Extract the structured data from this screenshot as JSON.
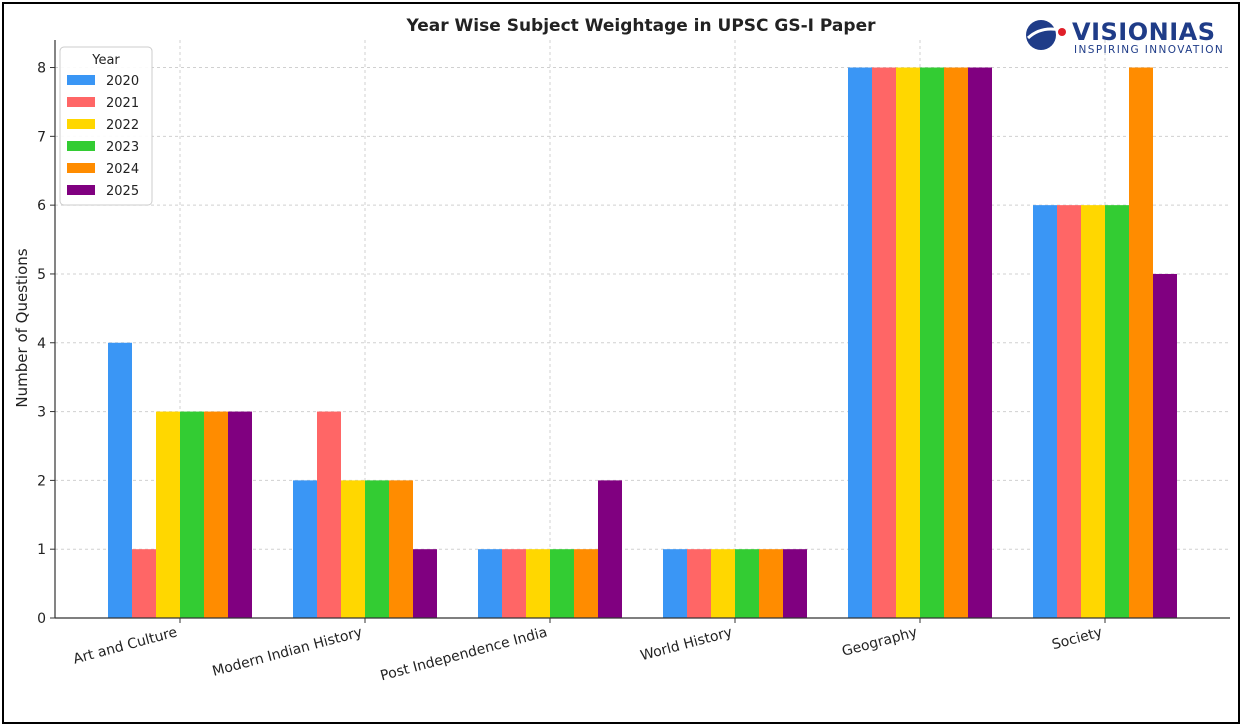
{
  "brand": {
    "name": "VISIONIAS",
    "tagline": "INSPIRING INNOVATION",
    "colors": {
      "primary": "#1f3c88",
      "accent": "#e0202a"
    }
  },
  "chart_data": {
    "type": "bar",
    "title": "Year Wise Subject Weightage in UPSC GS-I Paper",
    "xlabel": "",
    "ylabel": "Number of Questions",
    "ylim": [
      0,
      8.4
    ],
    "yticks": [
      0,
      1,
      2,
      3,
      4,
      5,
      6,
      7,
      8
    ],
    "grid": true,
    "legend": {
      "title": "Year",
      "placement": "top-left"
    },
    "categories": [
      "Art and Culture",
      "Modern Indian History",
      "Post Independence India",
      "World History",
      "Geography",
      "Society"
    ],
    "series": [
      {
        "name": "2020",
        "color": "#3a96f5",
        "values": [
          4,
          2,
          1,
          1,
          8,
          6
        ]
      },
      {
        "name": "2021",
        "color": "#ff6666",
        "values": [
          1,
          3,
          1,
          1,
          8,
          6
        ]
      },
      {
        "name": "2022",
        "color": "#ffd700",
        "values": [
          3,
          2,
          1,
          1,
          8,
          6
        ]
      },
      {
        "name": "2023",
        "color": "#33cc33",
        "values": [
          3,
          2,
          1,
          1,
          8,
          6
        ]
      },
      {
        "name": "2024",
        "color": "#ff8c00",
        "values": [
          3,
          2,
          1,
          1,
          8,
          8
        ]
      },
      {
        "name": "2025",
        "color": "#800080",
        "values": [
          3,
          1,
          2,
          1,
          8,
          5
        ]
      }
    ]
  }
}
